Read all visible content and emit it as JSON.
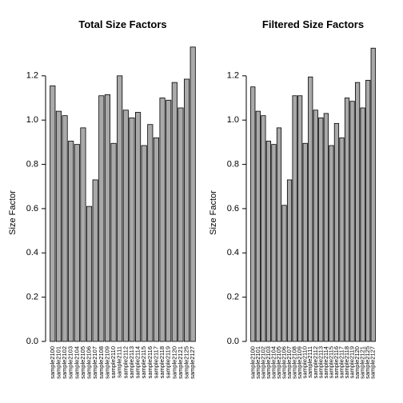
{
  "chart_data": [
    {
      "type": "bar",
      "title": "Total Size Factors",
      "y_label": "Size Factor",
      "color": "#a9a9a9",
      "categories": [
        "sample2100",
        "sample2101",
        "sample2102",
        "sample2103",
        "sample2104",
        "sample2105",
        "sample2106",
        "sample2107",
        "sample2108",
        "sample2109",
        "sample2110",
        "sample2111",
        "sample2112",
        "sample2113",
        "sample2114",
        "sample2115",
        "sample2116",
        "sample2117",
        "sample2118",
        "sample2119",
        "sample2120",
        "sample2121",
        "sample2125",
        "sample2127"
      ],
      "values": [
        1.155,
        1.04,
        1.02,
        0.905,
        0.89,
        0.965,
        0.61,
        0.73,
        1.11,
        1.115,
        0.895,
        1.2,
        1.045,
        1.01,
        1.035,
        0.885,
        0.98,
        0.92,
        1.1,
        1.09,
        1.17,
        1.055,
        1.185,
        1.33
      ],
      "ylim": [
        0,
        1.38
      ],
      "yticks": [
        {
          "value": 0,
          "label": "0.0"
        },
        {
          "value": 0.2,
          "label": "0.2"
        },
        {
          "value": 0.4,
          "label": "0.4"
        },
        {
          "value": 0.6,
          "label": "0.6"
        },
        {
          "value": 0.8,
          "label": "0.8"
        },
        {
          "value": 1,
          "label": "1.0"
        },
        {
          "value": 1.2,
          "label": "1.2"
        }
      ]
    },
    {
      "type": "bar",
      "title": "Filtered Size Factors",
      "y_label": "Size Factor",
      "color": "#a9a9a9",
      "categories": [
        "sample2100",
        "sample2101",
        "sample2102",
        "sample2103",
        "sample2104",
        "sample2105",
        "sample2106",
        "sample2107",
        "sample2108",
        "sample2109",
        "sample2110",
        "sample2111",
        "sample2112",
        "sample2113",
        "sample2114",
        "sample2115",
        "sample2116",
        "sample2117",
        "sample2118",
        "sample2119",
        "sample2120",
        "sample2121",
        "sample2125",
        "sample2127"
      ],
      "values": [
        1.15,
        1.04,
        1.02,
        0.905,
        0.89,
        0.965,
        0.615,
        0.73,
        1.11,
        1.11,
        0.895,
        1.195,
        1.045,
        1.01,
        1.03,
        0.885,
        0.985,
        0.92,
        1.1,
        1.085,
        1.17,
        1.055,
        1.18,
        1.325
      ],
      "ylim": [
        0,
        1.38
      ],
      "yticks": [
        {
          "value": 0,
          "label": "0.0"
        },
        {
          "value": 0.2,
          "label": "0.2"
        },
        {
          "value": 0.4,
          "label": "0.4"
        },
        {
          "value": 0.6,
          "label": "0.6"
        },
        {
          "value": 0.8,
          "label": "0.8"
        },
        {
          "value": 1,
          "label": "1.0"
        },
        {
          "value": 1.2,
          "label": "1.2"
        }
      ]
    }
  ]
}
